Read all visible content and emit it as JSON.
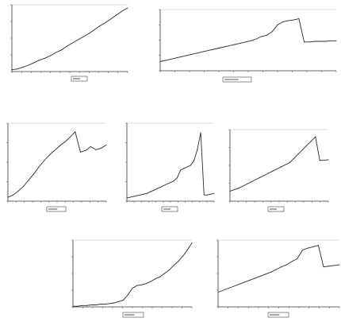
{
  "figure": {
    "background": "#ffffff",
    "line_color": "#2a2a2a"
  },
  "chart_data": [
    {
      "type": "line",
      "grid": false,
      "legend": "bottom",
      "xlim": [
        0,
        25
      ],
      "ylim": [
        0,
        105
      ],
      "series": [
        {
          "values": [
            3,
            4,
            7,
            10,
            14,
            18,
            21,
            25,
            30,
            34,
            40,
            45,
            50,
            55,
            60,
            66,
            72,
            77,
            83,
            89,
            95,
            100
          ]
        }
      ]
    },
    {
      "type": "line",
      "grid": false,
      "legend": "bottom",
      "xlim": [
        0,
        40
      ],
      "ylim": [
        0,
        100
      ],
      "series": [
        {
          "values": [
            15,
            17,
            19,
            21,
            23,
            25,
            27,
            29,
            31,
            33,
            35,
            37,
            39,
            41,
            43,
            45,
            47,
            49,
            52,
            56,
            58,
            64,
            75,
            80,
            82,
            83,
            85,
            47,
            47,
            48,
            48,
            48,
            49,
            49
          ]
        }
      ]
    },
    {
      "type": "line",
      "grid": false,
      "legend": "bottom",
      "xlim": [
        0,
        20
      ],
      "ylim": [
        0,
        100
      ],
      "series": [
        {
          "values": [
            5,
            8,
            13,
            19,
            27,
            35,
            44,
            52,
            59,
            65,
            71,
            76,
            82,
            89,
            63,
            65,
            70,
            66,
            68,
            72
          ]
        }
      ]
    },
    {
      "type": "line",
      "grid": false,
      "legend": "bottom",
      "xlim": [
        0,
        36
      ],
      "ylim": [
        0,
        100
      ],
      "series": [
        {
          "values": [
            4,
            5,
            6,
            7,
            8,
            9,
            10,
            12,
            14,
            16,
            18,
            20,
            22,
            24,
            26,
            30,
            40,
            42,
            44,
            46,
            52,
            66,
            88,
            8,
            8,
            9,
            10
          ]
        }
      ]
    },
    {
      "type": "line",
      "grid": false,
      "legend": "bottom",
      "xlim": [
        0,
        33
      ],
      "ylim": [
        0,
        100
      ],
      "series": [
        {
          "values": [
            14,
            16,
            18,
            21,
            24,
            27,
            30,
            33,
            36,
            39,
            42,
            45,
            48,
            51,
            54,
            60,
            66,
            72,
            78,
            84,
            90,
            57,
            57,
            58
          ]
        }
      ]
    },
    {
      "type": "line",
      "grid": false,
      "legend": "bottom",
      "xlim": [
        0,
        33
      ],
      "ylim": [
        0,
        100
      ],
      "series": [
        {
          "values": [
            1,
            1,
            2,
            2,
            3,
            3,
            4,
            4,
            5,
            6,
            8,
            10,
            18,
            28,
            32,
            33,
            35,
            38,
            42,
            45,
            50,
            55,
            62,
            68,
            76,
            85,
            96
          ]
        }
      ]
    },
    {
      "type": "line",
      "grid": false,
      "legend": "bottom",
      "xlim": [
        0,
        33
      ],
      "ylim": [
        0,
        100
      ],
      "series": [
        {
          "values": [
            22,
            25,
            28,
            31,
            34,
            37,
            40,
            43,
            46,
            49,
            52,
            56,
            60,
            63,
            68,
            72,
            85,
            88,
            90,
            92,
            60,
            61,
            62,
            63
          ]
        }
      ]
    }
  ]
}
